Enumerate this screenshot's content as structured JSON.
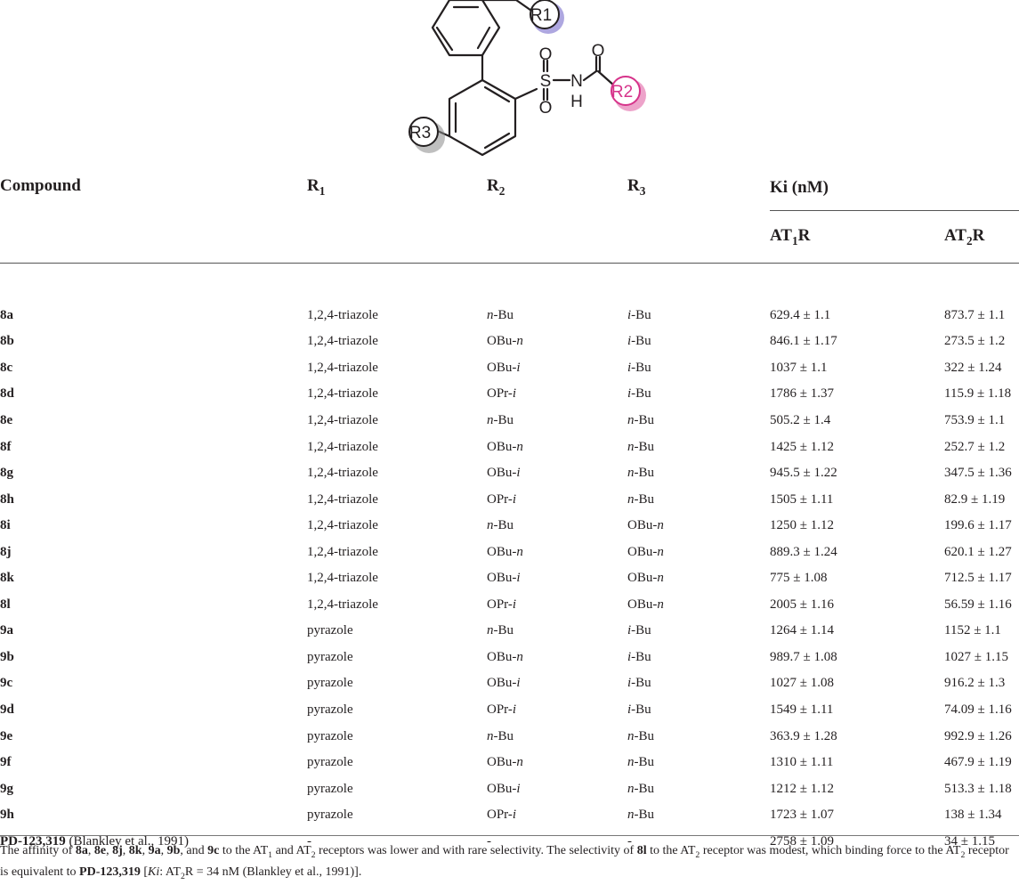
{
  "structure": {
    "labels": {
      "r1": "R1",
      "r2": "R2",
      "r3": "R3",
      "s": "S",
      "nh": "N",
      "h": "H",
      "o": "O"
    },
    "colors": {
      "r1": "#6b5fc7",
      "r2": "#d6338a",
      "r3": "#8a8a8a"
    }
  },
  "headers": {
    "compound": "Compound",
    "r1": "R",
    "r1_sub": "1",
    "r2": "R",
    "r2_sub": "2",
    "r3": "R",
    "r3_sub": "3",
    "ki": "Ki (nM)",
    "at1": "AT",
    "at1_sub": "1",
    "at1_suffix": "R",
    "at2": "AT",
    "at2_sub": "2",
    "at2_suffix": "R"
  },
  "rows": [
    {
      "compound": "8a",
      "ref": "",
      "r1": "1,2,4-triazole",
      "r2": "n-Bu",
      "r3": "i-Bu",
      "at1": "629.4 ± 1.1",
      "at2": "873.7 ± 1.1"
    },
    {
      "compound": "8b",
      "ref": "",
      "r1": "1,2,4-triazole",
      "r2": "OBu-n",
      "r3": "i-Bu",
      "at1": "846.1 ± 1.17",
      "at2": "273.5 ± 1.2"
    },
    {
      "compound": "8c",
      "ref": "",
      "r1": "1,2,4-triazole",
      "r2": "OBu-i",
      "r3": "i-Bu",
      "at1": "1037 ± 1.1",
      "at2": "322 ± 1.24"
    },
    {
      "compound": "8d",
      "ref": "",
      "r1": "1,2,4-triazole",
      "r2": "OPr-i",
      "r3": "i-Bu",
      "at1": "1786 ± 1.37",
      "at2": "115.9 ± 1.18"
    },
    {
      "compound": "8e",
      "ref": "",
      "r1": "1,2,4-triazole",
      "r2": "n-Bu",
      "r3": "n-Bu",
      "at1": "505.2 ± 1.4",
      "at2": "753.9 ± 1.1"
    },
    {
      "compound": "8f",
      "ref": "",
      "r1": "1,2,4-triazole",
      "r2": "OBu-n",
      "r3": "n-Bu",
      "at1": "1425 ± 1.12",
      "at2": "252.7 ± 1.2"
    },
    {
      "compound": "8g",
      "ref": "",
      "r1": "1,2,4-triazole",
      "r2": "OBu-i",
      "r3": "n-Bu",
      "at1": "945.5 ± 1.22",
      "at2": "347.5 ± 1.36"
    },
    {
      "compound": "8h",
      "ref": "",
      "r1": "1,2,4-triazole",
      "r2": "OPr-i",
      "r3": "n-Bu",
      "at1": "1505 ± 1.11",
      "at2": "82.9 ± 1.19"
    },
    {
      "compound": "8i",
      "ref": "",
      "r1": "1,2,4-triazole",
      "r2": "n-Bu",
      "r3": "OBu-n",
      "at1": "1250 ± 1.12",
      "at2": "199.6 ± 1.17"
    },
    {
      "compound": "8j",
      "ref": "",
      "r1": "1,2,4-triazole",
      "r2": "OBu-n",
      "r3": "OBu-n",
      "at1": "889.3 ± 1.24",
      "at2": "620.1 ± 1.27"
    },
    {
      "compound": "8k",
      "ref": "",
      "r1": "1,2,4-triazole",
      "r2": "OBu-i",
      "r3": "OBu-n",
      "at1": "775 ± 1.08",
      "at2": "712.5 ± 1.17"
    },
    {
      "compound": "8l",
      "ref": "",
      "r1": "1,2,4-triazole",
      "r2": "OPr-i",
      "r3": "OBu-n",
      "at1": "2005 ± 1.16",
      "at2": "56.59 ± 1.16"
    },
    {
      "compound": "9a",
      "ref": "",
      "r1": "pyrazole",
      "r2": "n-Bu",
      "r3": "i-Bu",
      "at1": "1264 ± 1.14",
      "at2": "1152 ± 1.1"
    },
    {
      "compound": "9b",
      "ref": "",
      "r1": "pyrazole",
      "r2": "OBu-n",
      "r3": "i-Bu",
      "at1": "989.7 ± 1.08",
      "at2": "1027 ± 1.15"
    },
    {
      "compound": "9c",
      "ref": "",
      "r1": "pyrazole",
      "r2": "OBu-i",
      "r3": "i-Bu",
      "at1": "1027 ± 1.08",
      "at2": "916.2 ± 1.3"
    },
    {
      "compound": "9d",
      "ref": "",
      "r1": "pyrazole",
      "r2": "OPr-i",
      "r3": "i-Bu",
      "at1": "1549 ± 1.11",
      "at2": "74.09 ± 1.16"
    },
    {
      "compound": "9e",
      "ref": "",
      "r1": "pyrazole",
      "r2": "n-Bu",
      "r3": "n-Bu",
      "at1": "363.9 ± 1.28",
      "at2": "992.9 ± 1.26"
    },
    {
      "compound": "9f",
      "ref": "",
      "r1": "pyrazole",
      "r2": "OBu-n",
      "r3": "n-Bu",
      "at1": "1310 ± 1.11",
      "at2": "467.9 ± 1.19"
    },
    {
      "compound": "9g",
      "ref": "",
      "r1": "pyrazole",
      "r2": "OBu-i",
      "r3": "n-Bu",
      "at1": "1212 ± 1.12",
      "at2": "513.3 ± 1.18"
    },
    {
      "compound": "9h",
      "ref": "",
      "r1": "pyrazole",
      "r2": "OPr-i",
      "r3": "n-Bu",
      "at1": "1723 ± 1.07",
      "at2": "138 ± 1.34"
    },
    {
      "compound": "PD-123,319",
      "ref": " (Blankley et al., 1991)",
      "r1": "-",
      "r2": "-",
      "r3": "-",
      "at1": "2758 ± 1.09",
      "at2": "34 ± 1.15"
    }
  ],
  "footnote": {
    "p1": "The affinity of ",
    "b1": "8a",
    "p2": ", ",
    "b2": "8e",
    "p3": ", ",
    "b3": "8j",
    "p4": ", ",
    "b4": "8k",
    "p5": ", ",
    "b5": "9a",
    "p6": ", ",
    "b6": "9b",
    "p7": ", and ",
    "b7": "9c",
    "p8": " to the AT",
    "s1": "1",
    "p9": " and AT",
    "s2": "2",
    "p10": " receptors was lower and with rare selectivity. The selectivity of ",
    "b8": "8l",
    "p11": " to the AT",
    "s3": "2",
    "p12": " receptor was modest, which binding force to the AT",
    "s4": "2",
    "p13": " receptor is equivalent to ",
    "b9": "PD-123,319",
    "p14": " [",
    "i1": "Ki",
    "p15": ": AT",
    "s5": "2",
    "p16": "R = 34 nM (Blankley et al., 1991)]."
  }
}
